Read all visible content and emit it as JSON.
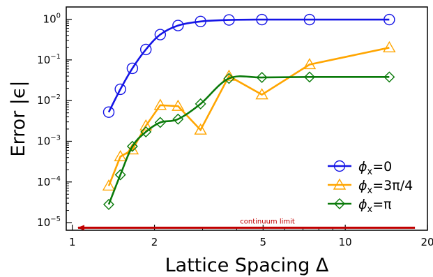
{
  "chart_data": {
    "type": "line",
    "xlabel": "Lattice Spacing Δ",
    "ylabel": "Error |ϵ|",
    "x_scale": "log",
    "y_scale": "log",
    "xlim": [
      0.95,
      20
    ],
    "ylim": [
      6.5e-06,
      2
    ],
    "grid": false,
    "legend_position": "lower-right",
    "x_ticks": [
      {
        "value": 1,
        "label": "1"
      },
      {
        "value": 2,
        "label": "2"
      },
      {
        "value": 5,
        "label": "5"
      },
      {
        "value": 10,
        "label": "10"
      },
      {
        "value": 20,
        "label": "20"
      }
    ],
    "y_ticks": [
      {
        "value": 1,
        "base": "10",
        "exp": "0"
      },
      {
        "value": 0.1,
        "base": "10",
        "exp": "−1"
      },
      {
        "value": 0.01,
        "base": "10",
        "exp": "−2"
      },
      {
        "value": 0.001,
        "base": "10",
        "exp": "−3"
      },
      {
        "value": 0.0001,
        "base": "10",
        "exp": "−4"
      },
      {
        "value": 1e-05,
        "base": "10",
        "exp": "−5"
      }
    ],
    "series": [
      {
        "name": "ϕ",
        "name_sub": "x",
        "name_tail": "=0",
        "color": "#1414e6",
        "marker": "circle",
        "line_style": "smooth",
        "x": [
          1.36,
          1.5,
          1.66,
          1.86,
          2.1,
          2.44,
          2.95,
          3.75,
          4.95,
          7.4,
          14.5
        ],
        "y": [
          0.0052,
          0.019,
          0.062,
          0.18,
          0.42,
          0.7,
          0.88,
          0.96,
          0.98,
          0.98,
          0.98
        ]
      },
      {
        "name": "ϕ",
        "name_sub": "x",
        "name_tail": "=3π/4",
        "color": "#ffa500",
        "marker": "triangle",
        "line_style": "straight",
        "x": [
          1.36,
          1.5,
          1.66,
          1.86,
          2.1,
          2.44,
          2.95,
          3.75,
          4.95,
          7.4,
          14.5
        ],
        "y": [
          8e-05,
          0.00042,
          0.00062,
          0.0024,
          0.0077,
          0.0073,
          0.0019,
          0.04,
          0.014,
          0.077,
          0.2
        ]
      },
      {
        "name": "ϕ",
        "name_sub": "x",
        "name_tail": "=π",
        "color": "#0a7a0a",
        "marker": "diamond",
        "line_style": "smooth",
        "x": [
          1.36,
          1.5,
          1.66,
          1.86,
          2.1,
          2.44,
          2.95,
          3.75,
          4.95,
          7.4,
          14.5
        ],
        "y": [
          2.8e-05,
          0.00015,
          0.00075,
          0.0017,
          0.0029,
          0.0035,
          0.0083,
          0.035,
          0.037,
          0.038,
          0.038
        ]
      }
    ],
    "annotations": [
      {
        "text": "continuum limit",
        "color": "#c00000",
        "arrow_from_x": 18,
        "arrow_to_x": 1.05,
        "y": 7.5e-06
      }
    ]
  }
}
